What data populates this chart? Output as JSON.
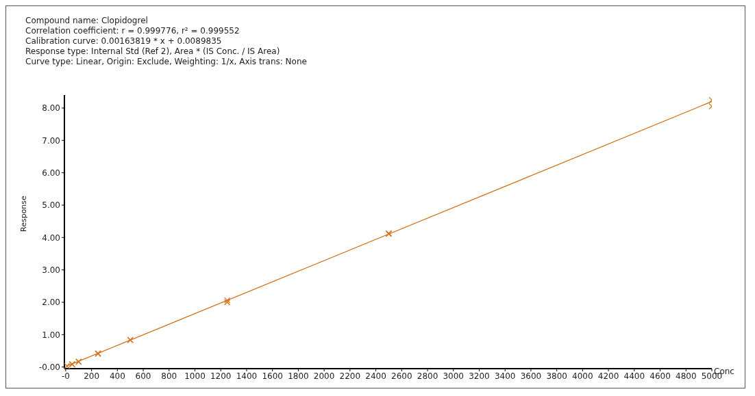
{
  "chart_data": {
    "type": "scatter",
    "annotations": [
      "Compound name: Clopidogrel",
      "Correlation coefficient: r = 0.999776, r² = 0.999552",
      "Calibration curve: 0.00163819 * x + 0.0089835",
      "Response type: Internal Std (Ref 2), Area * (IS Conc. / IS Area)",
      "Curve type: Linear, Origin: Exclude, Weighting: 1/x, Axis trans: None"
    ],
    "xlabel": "Conc",
    "ylabel": "Response",
    "series": [
      {
        "marker": "cross",
        "color": "#d2721a",
        "x": [
          10,
          50,
          50,
          100,
          100,
          250,
          250,
          500,
          500,
          1250,
          1250,
          2500,
          2500,
          5000,
          5000
        ],
        "values": [
          0.03,
          0.09,
          0.08,
          0.17,
          0.16,
          0.42,
          0.41,
          0.84,
          0.83,
          2.06,
          2.0,
          4.13,
          4.11,
          8.25,
          8.05
        ]
      },
      {
        "type": "line",
        "marker": "none",
        "color": "#d2721a",
        "x": [
          10,
          5000
        ],
        "values": [
          0.03,
          8.2
        ]
      }
    ],
    "xlim": [
      -10,
      5000
    ],
    "ylim": [
      -0.05,
      8.4
    ],
    "xticks": [
      {
        "value": 0,
        "label": "-0"
      },
      200,
      400,
      600,
      800,
      1000,
      1200,
      1400,
      1600,
      1800,
      2000,
      2200,
      2400,
      2600,
      2800,
      3000,
      3200,
      3400,
      3600,
      3800,
      4000,
      4200,
      4400,
      4600,
      4800,
      5000
    ],
    "yticks": [
      {
        "value": 0,
        "label": "-0.00"
      },
      {
        "value": 1,
        "label": "1.00"
      },
      {
        "value": 2,
        "label": "2.00"
      },
      {
        "value": 3,
        "label": "3.00"
      },
      {
        "value": 4,
        "label": "4.00"
      },
      {
        "value": 5,
        "label": "5.00"
      },
      {
        "value": 6,
        "label": "6.00"
      },
      {
        "value": 7,
        "label": "7.00"
      },
      {
        "value": 8,
        "label": "8.00"
      }
    ],
    "grid": false,
    "legend": false,
    "line_style": "solid"
  }
}
